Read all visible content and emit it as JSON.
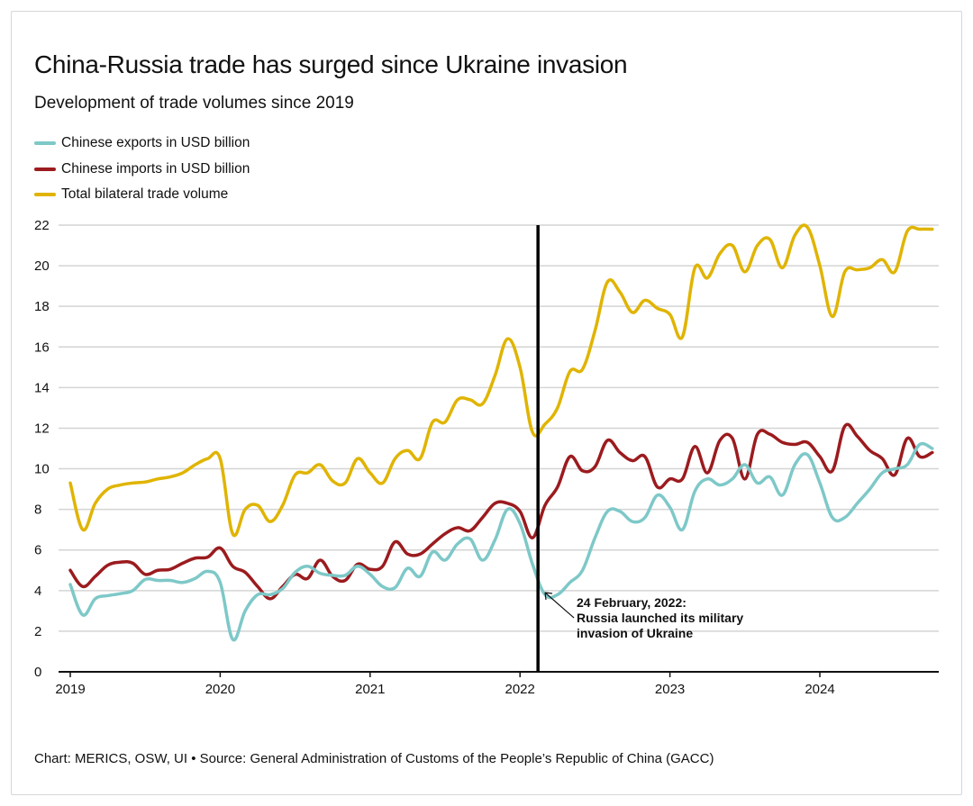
{
  "chart_data": {
    "type": "line",
    "title": "China-Russia trade has surged since Ukraine invasion",
    "subtitle": "Development of trade volumes since 2019",
    "xlabel": "",
    "ylabel": "",
    "start_month": "2019-01",
    "frequency": "monthly",
    "ylim": [
      0,
      22
    ],
    "yticks": [
      0,
      2,
      4,
      6,
      8,
      10,
      12,
      14,
      16,
      18,
      20,
      22
    ],
    "xticks": [
      "2019",
      "2020",
      "2021",
      "2022",
      "2023",
      "2024"
    ],
    "xlim": [
      2019,
      2024.85
    ],
    "grid": true,
    "legend_position": "top-left",
    "series": [
      {
        "name": "Chinese exports in USD billion",
        "color": "#7ec8c8",
        "values": [
          4.3,
          2.8,
          3.6,
          3.75,
          3.85,
          4.0,
          4.55,
          4.5,
          4.5,
          4.4,
          4.6,
          4.95,
          4.4,
          1.6,
          3.0,
          3.8,
          3.8,
          4.1,
          4.9,
          5.2,
          4.85,
          4.75,
          4.75,
          5.2,
          4.8,
          4.2,
          4.15,
          5.1,
          4.7,
          5.9,
          5.5,
          6.3,
          6.55,
          5.5,
          6.5,
          8.0,
          7.3,
          5.3,
          3.8,
          3.8,
          4.4,
          5.0,
          6.6,
          7.9,
          7.9,
          7.4,
          7.6,
          8.7,
          8.1,
          7.0,
          8.9,
          9.5,
          9.2,
          9.5,
          10.2,
          9.3,
          9.6,
          8.7,
          10.2,
          10.7,
          9.3,
          7.6,
          7.6,
          8.3,
          9.0,
          9.8,
          10.0,
          10.2,
          11.2,
          11.0
        ]
      },
      {
        "name": "Chinese imports in USD billion",
        "color": "#9b1b1e",
        "values": [
          5.0,
          4.2,
          4.7,
          5.25,
          5.4,
          5.35,
          4.8,
          5.0,
          5.05,
          5.35,
          5.6,
          5.65,
          6.1,
          5.2,
          4.9,
          4.2,
          3.6,
          4.2,
          4.8,
          4.6,
          5.5,
          4.7,
          4.5,
          5.3,
          5.05,
          5.2,
          6.4,
          5.8,
          5.8,
          6.3,
          6.8,
          7.1,
          6.95,
          7.6,
          8.3,
          8.3,
          7.9,
          6.6,
          8.2,
          9.1,
          10.6,
          9.9,
          10.1,
          11.4,
          10.8,
          10.4,
          10.6,
          9.1,
          9.5,
          9.5,
          11.1,
          9.8,
          11.4,
          11.5,
          9.5,
          11.7,
          11.7,
          11.3,
          11.2,
          11.3,
          10.6,
          9.9,
          12.1,
          11.6,
          10.9,
          10.5,
          9.7,
          11.5,
          10.6,
          10.8
        ]
      },
      {
        "name": "Total bilateral trade volume",
        "color": "#e0b400",
        "values": [
          9.3,
          7.0,
          8.3,
          9.0,
          9.2,
          9.3,
          9.35,
          9.5,
          9.6,
          9.8,
          10.2,
          10.5,
          10.5,
          6.8,
          8.0,
          8.2,
          7.4,
          8.2,
          9.7,
          9.8,
          10.2,
          9.4,
          9.3,
          10.5,
          9.8,
          9.3,
          10.5,
          10.9,
          10.5,
          12.3,
          12.3,
          13.4,
          13.4,
          13.2,
          14.6,
          16.4,
          15.0,
          11.8,
          12.2,
          13.0,
          14.8,
          14.9,
          16.8,
          19.2,
          18.7,
          17.7,
          18.3,
          17.9,
          17.6,
          16.5,
          19.9,
          19.4,
          20.6,
          21.0,
          19.7,
          21.0,
          21.3,
          19.9,
          21.5,
          21.9,
          20.0,
          17.5,
          19.7,
          19.8,
          19.9,
          20.3,
          19.7,
          21.7,
          21.8,
          21.8
        ]
      }
    ],
    "annotation": {
      "date": 2022.12,
      "lines": [
        "24 February, 2022:",
        "Russia launched its military",
        "invasion of Ukraine"
      ]
    }
  },
  "footer": "Chart: MERICS, OSW, UI • Source: General Administration of Customs of the People’s Republic of China (GACC)"
}
